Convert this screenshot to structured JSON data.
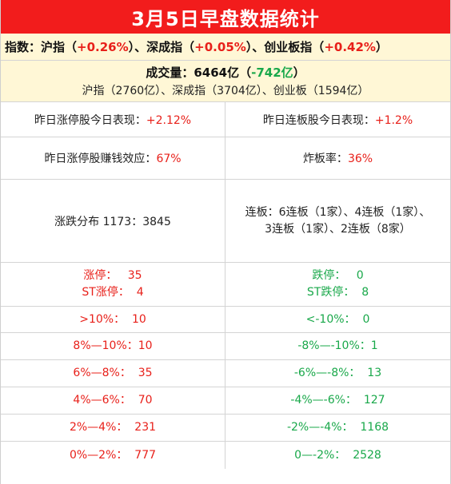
{
  "title": "3月5日早盘数据统计",
  "indexes": {
    "label": "指数：",
    "sh_name": "沪指（",
    "sh_val": "+0.26%",
    "sh_close": "）、",
    "sz_name": "深成指（",
    "sz_val": "+0.05%",
    "sz_close": "）、",
    "cy_name": "创业板指（",
    "cy_val": "+0.42%",
    "cy_close": "）"
  },
  "volume": {
    "label": "成交量：6464亿（",
    "change": "-742亿",
    "close": "）",
    "detail": "沪指（2760亿）、深成指（3704亿）、创业板（1594亿）"
  },
  "stats": {
    "zt_perf_label": "昨日涨停股今日表现：",
    "zt_perf_val": "+2.12%",
    "lb_perf_label": "昨日连板股今日表现：",
    "lb_perf_val": "+1.2%",
    "zt_effect_label": "昨日涨停股赚钱效应：",
    "zt_effect_val": "67%",
    "zhaban_label": "炸板率：",
    "zhaban_val": "36%",
    "distribution": "涨跌分布 1173：3845",
    "lianban_line1": "连板：6连板（1家）、4连板（1家）、",
    "lianban_line2": "3连板（1家）、2连板（8家）"
  },
  "limits": {
    "up_line": "涨停：   35",
    "st_up_line": "ST涨停：  4",
    "down_line": "跌停：   0",
    "st_down_line": "ST跌停：  8"
  },
  "ranges": [
    {
      "up": ">10%：  10",
      "down": "<-10%：  0"
    },
    {
      "up": "8%—10%：10",
      "down": "-8%—-10%：1"
    },
    {
      "up": "6%—8%：  35",
      "down": "-6%—-8%：  13"
    },
    {
      "up": "4%—6%：  70",
      "down": "-4%—-6%：  127"
    },
    {
      "up": "2%—4%：  231",
      "down": "-2%—-4%：  1168"
    },
    {
      "up": "0%—2%：  777",
      "down": "0—-2%：  2528"
    }
  ],
  "colors": {
    "title_bg": "#f21c1c",
    "header_bg": "#fff7d6",
    "up": "#e8201a",
    "down": "#19a84a"
  }
}
